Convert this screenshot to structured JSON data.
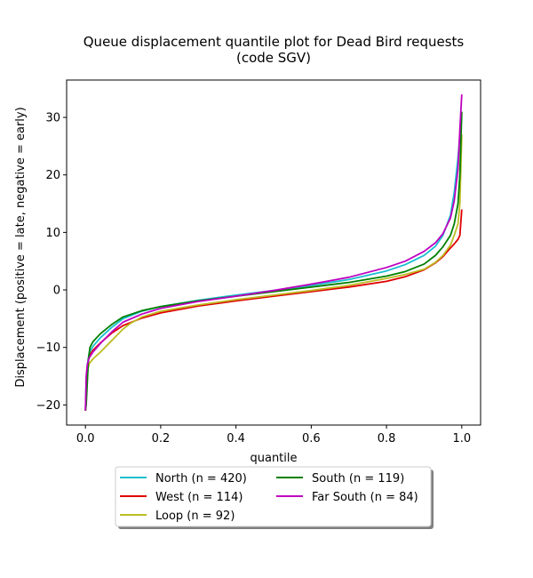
{
  "chart_data": {
    "type": "line",
    "title": "Queue displacement quantile plot for Dead Bird  requests",
    "subtitle": "(code SGV)",
    "xlabel": "quantile",
    "ylabel": "Displacement (positive = late, negative = early)",
    "xlim": [
      -0.05,
      1.05
    ],
    "ylim": [
      -23.5,
      36.5
    ],
    "xticks": [
      {
        "value": 0.0,
        "label": "0.0"
      },
      {
        "value": 0.2,
        "label": "0.2"
      },
      {
        "value": 0.4,
        "label": "0.4"
      },
      {
        "value": 0.6,
        "label": "0.6"
      },
      {
        "value": 0.8,
        "label": "0.8"
      },
      {
        "value": 1.0,
        "label": "1.0"
      }
    ],
    "yticks": [
      {
        "value": -20,
        "label": "−20"
      },
      {
        "value": -10,
        "label": "−10"
      },
      {
        "value": 0,
        "label": "0"
      },
      {
        "value": 10,
        "label": "10"
      },
      {
        "value": 20,
        "label": "20"
      },
      {
        "value": 30,
        "label": "30"
      }
    ],
    "grid": false,
    "legend_placement": "below plot, two columns",
    "series": [
      {
        "name": "North (n = 420)",
        "color": "#17becf",
        "x": [
          0.0,
          0.002,
          0.005,
          0.01,
          0.02,
          0.04,
          0.07,
          0.1,
          0.15,
          0.2,
          0.3,
          0.4,
          0.5,
          0.6,
          0.7,
          0.8,
          0.85,
          0.9,
          0.93,
          0.95,
          0.97,
          0.98,
          0.99,
          0.995,
          1.0
        ],
        "y": [
          -21,
          -16,
          -13,
          -11,
          -9.8,
          -8.3,
          -6.5,
          -5.0,
          -3.7,
          -2.9,
          -1.8,
          -0.9,
          -0.1,
          0.8,
          1.8,
          3.3,
          4.4,
          6.0,
          7.6,
          9.5,
          13,
          17,
          23,
          27,
          30
        ]
      },
      {
        "name": "West (n = 114)",
        "color": "#e00000",
        "x": [
          0.0,
          0.003,
          0.006,
          0.01,
          0.02,
          0.04,
          0.07,
          0.1,
          0.15,
          0.2,
          0.3,
          0.4,
          0.5,
          0.6,
          0.7,
          0.8,
          0.85,
          0.9,
          0.93,
          0.95,
          0.97,
          0.98,
          0.99,
          0.995,
          1.0
        ],
        "y": [
          -21,
          -16,
          -13,
          -11.5,
          -10.5,
          -9.2,
          -7.5,
          -6.2,
          -4.9,
          -4.0,
          -2.8,
          -1.9,
          -1.1,
          -0.3,
          0.5,
          1.5,
          2.3,
          3.5,
          4.7,
          5.8,
          7.3,
          8.0,
          8.8,
          9.5,
          14
        ]
      },
      {
        "name": "Loop (n = 92)",
        "color": "#bcbd22",
        "x": [
          0.0,
          0.003,
          0.006,
          0.01,
          0.02,
          0.04,
          0.07,
          0.1,
          0.12,
          0.15,
          0.2,
          0.3,
          0.4,
          0.5,
          0.6,
          0.7,
          0.8,
          0.85,
          0.9,
          0.93,
          0.95,
          0.97,
          0.98,
          0.99,
          0.995,
          1.0
        ],
        "y": [
          -21,
          -17,
          -14,
          -12.8,
          -12,
          -10.8,
          -8.8,
          -6.8,
          -5.8,
          -4.7,
          -3.7,
          -2.6,
          -1.7,
          -0.9,
          -0.1,
          0.8,
          2.0,
          2.7,
          3.6,
          4.8,
          6.0,
          7.8,
          9.5,
          11.5,
          15,
          27
        ]
      },
      {
        "name": "South (n = 119)",
        "color": "#008000",
        "x": [
          0.0,
          0.002,
          0.005,
          0.008,
          0.012,
          0.02,
          0.04,
          0.07,
          0.1,
          0.15,
          0.2,
          0.3,
          0.4,
          0.5,
          0.6,
          0.7,
          0.8,
          0.85,
          0.9,
          0.93,
          0.95,
          0.97,
          0.98,
          0.99,
          0.995,
          1.0
        ],
        "y": [
          -21,
          -20,
          -16,
          -12,
          -10,
          -9,
          -7.6,
          -6.0,
          -4.7,
          -3.6,
          -2.9,
          -1.9,
          -1.1,
          -0.3,
          0.5,
          1.3,
          2.4,
          3.2,
          4.5,
          6.0,
          7.5,
          9.5,
          11.5,
          15,
          20,
          31
        ]
      },
      {
        "name": "Far South (n = 84)",
        "color": "#bf00bf",
        "x": [
          0.0,
          0.002,
          0.005,
          0.01,
          0.02,
          0.04,
          0.07,
          0.1,
          0.15,
          0.2,
          0.3,
          0.4,
          0.5,
          0.6,
          0.7,
          0.8,
          0.85,
          0.9,
          0.93,
          0.95,
          0.97,
          0.98,
          0.99,
          0.995,
          1.0
        ],
        "y": [
          -21,
          -15,
          -13,
          -11.8,
          -10.8,
          -9.3,
          -7.3,
          -5.6,
          -4.2,
          -3.2,
          -2.0,
          -1.1,
          -0.1,
          1.0,
          2.2,
          3.9,
          5.0,
          6.7,
          8.2,
          9.8,
          12.5,
          15.5,
          21,
          28,
          34
        ]
      }
    ]
  }
}
